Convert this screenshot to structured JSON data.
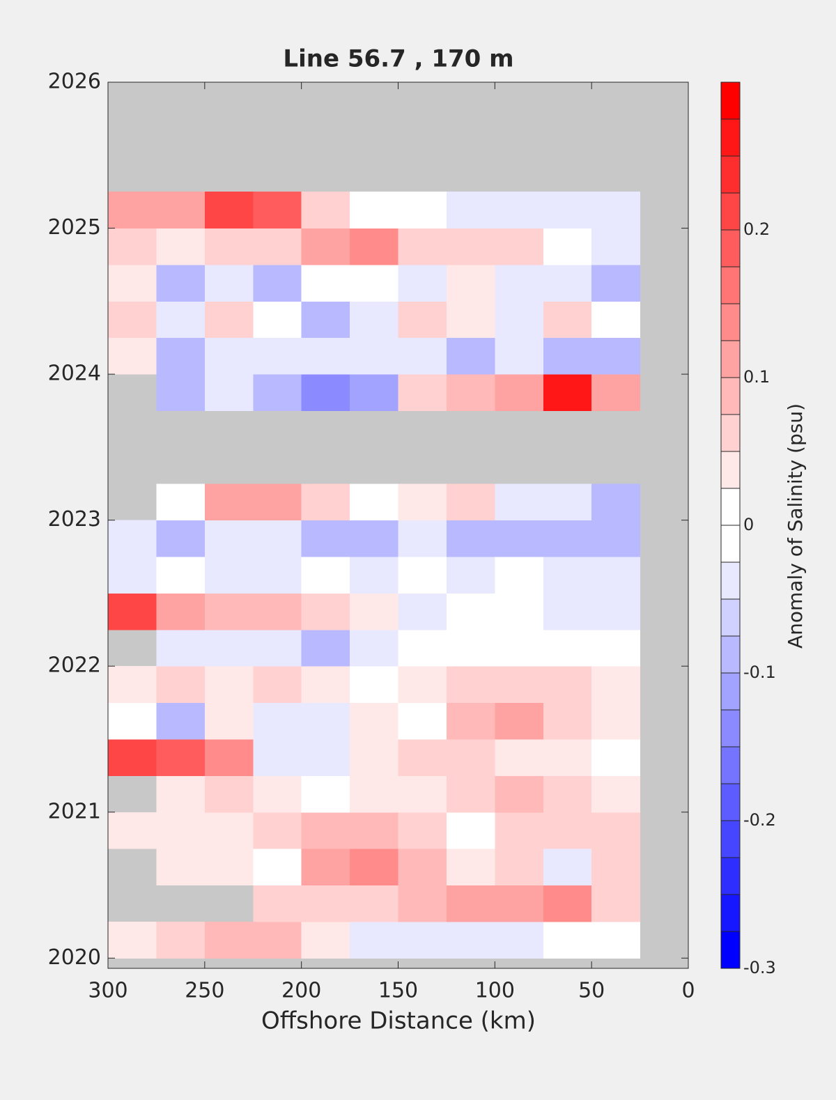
{
  "chart_data": {
    "type": "contourf",
    "title": "Line 56.7 , 170 m",
    "xlabel": "Offshore Distance (km)",
    "colorbar_label": "Anomaly of Salinity (psu)",
    "xlim": [
      300,
      0
    ],
    "xticks": [
      300,
      250,
      200,
      150,
      100,
      50,
      0
    ],
    "ylim": [
      2019.93,
      2026
    ],
    "yticks": [
      2020,
      2021,
      2022,
      2023,
      2024,
      2025,
      2026
    ],
    "clim": [
      -0.3,
      0.3
    ],
    "cticks": [
      -0.3,
      -0.2,
      -0.1,
      0,
      0.1,
      0.2
    ],
    "contour_step": 0.025,
    "color_low": "#0000ff",
    "color_high": "#ff0000",
    "nan_color": "#c8c8c8",
    "x": [
      287.5,
      262.5,
      237.5,
      212.5,
      187.5,
      162.5,
      137.5,
      112.5,
      87.5,
      62.5,
      37.5
    ],
    "y": [
      2020.125,
      2020.375,
      2020.625,
      2020.875,
      2021.125,
      2021.375,
      2021.625,
      2021.875,
      2022.125,
      2022.375,
      2022.625,
      2022.875,
      2023.125,
      2023.375,
      2023.625,
      2023.875,
      2024.125,
      2024.375,
      2024.625,
      2024.875,
      2025.125
    ],
    "z": [
      [
        0.03,
        0.05,
        0.08,
        0.08,
        0.03,
        -0.03,
        -0.03,
        -0.03,
        -0.03,
        0,
        0
      ],
      [
        null,
        null,
        null,
        0.05,
        0.05,
        0.05,
        0.08,
        0.1,
        0.12,
        0.15,
        0.05
      ],
      [
        null,
        0.03,
        0.03,
        0,
        0.1,
        0.15,
        0.08,
        0.03,
        0.05,
        -0.03,
        0.05
      ],
      [
        0.03,
        0.03,
        0.03,
        0.05,
        0.08,
        0.08,
        0.05,
        0,
        0.05,
        0.05,
        0.05
      ],
      [
        null,
        0.03,
        0.05,
        0.03,
        0,
        0.03,
        0.03,
        0.05,
        0.08,
        0.05,
        0.03
      ],
      [
        0.2,
        0.18,
        0.15,
        -0.05,
        -0.05,
        0.03,
        0.05,
        0.05,
        0.03,
        0.03,
        0
      ],
      [
        0,
        -0.08,
        0.03,
        -0.03,
        -0.05,
        0.03,
        0,
        0.08,
        0.1,
        0.05,
        0.03
      ],
      [
        0.03,
        0.05,
        0.03,
        0.05,
        0.03,
        0,
        0.03,
        0.05,
        0.05,
        0.05,
        0.03
      ],
      [
        null,
        -0.05,
        -0.05,
        -0.05,
        -0.08,
        -0.05,
        0,
        0,
        0,
        0,
        0
      ],
      [
        0.2,
        0.12,
        0.08,
        0.08,
        0.05,
        0.03,
        -0.05,
        0,
        0,
        -0.03,
        -0.05
      ],
      [
        -0.05,
        0,
        -0.05,
        -0.03,
        0,
        -0.03,
        0,
        -0.03,
        0,
        -0.03,
        -0.03
      ],
      [
        -0.03,
        -0.08,
        -0.03,
        -0.05,
        -0.08,
        -0.08,
        -0.05,
        -0.08,
        -0.1,
        -0.08,
        -0.08
      ],
      [
        null,
        0.02,
        0.12,
        0.1,
        0.05,
        0,
        0.03,
        0.05,
        -0.03,
        -0.05,
        -0.1
      ],
      [
        null,
        null,
        null,
        null,
        null,
        null,
        null,
        null,
        null,
        null,
        null
      ],
      [
        null,
        null,
        null,
        null,
        null,
        null,
        null,
        null,
        null,
        null,
        null
      ],
      [
        null,
        -0.08,
        -0.05,
        -0.08,
        -0.15,
        -0.12,
        0.05,
        0.08,
        0.12,
        0.25,
        0.1
      ],
      [
        0.03,
        -0.08,
        -0.05,
        -0.03,
        -0.03,
        -0.05,
        -0.03,
        -0.08,
        -0.05,
        -0.1,
        -0.1
      ],
      [
        0.05,
        -0.03,
        0.05,
        0,
        -0.08,
        -0.05,
        0.05,
        0.03,
        -0.05,
        0.05,
        0
      ],
      [
        0.03,
        -0.08,
        -0.03,
        -0.1,
        0,
        0.02,
        -0.03,
        0.03,
        -0.03,
        -0.05,
        -0.08
      ],
      [
        0.05,
        0.03,
        0.05,
        0.05,
        0.1,
        0.15,
        0.05,
        0.05,
        0.05,
        0,
        -0.03
      ],
      [
        0.12,
        0.1,
        0.2,
        0.18,
        0.05,
        0,
        0,
        -0.03,
        -0.03,
        -0.05,
        -0.03
      ]
    ]
  }
}
